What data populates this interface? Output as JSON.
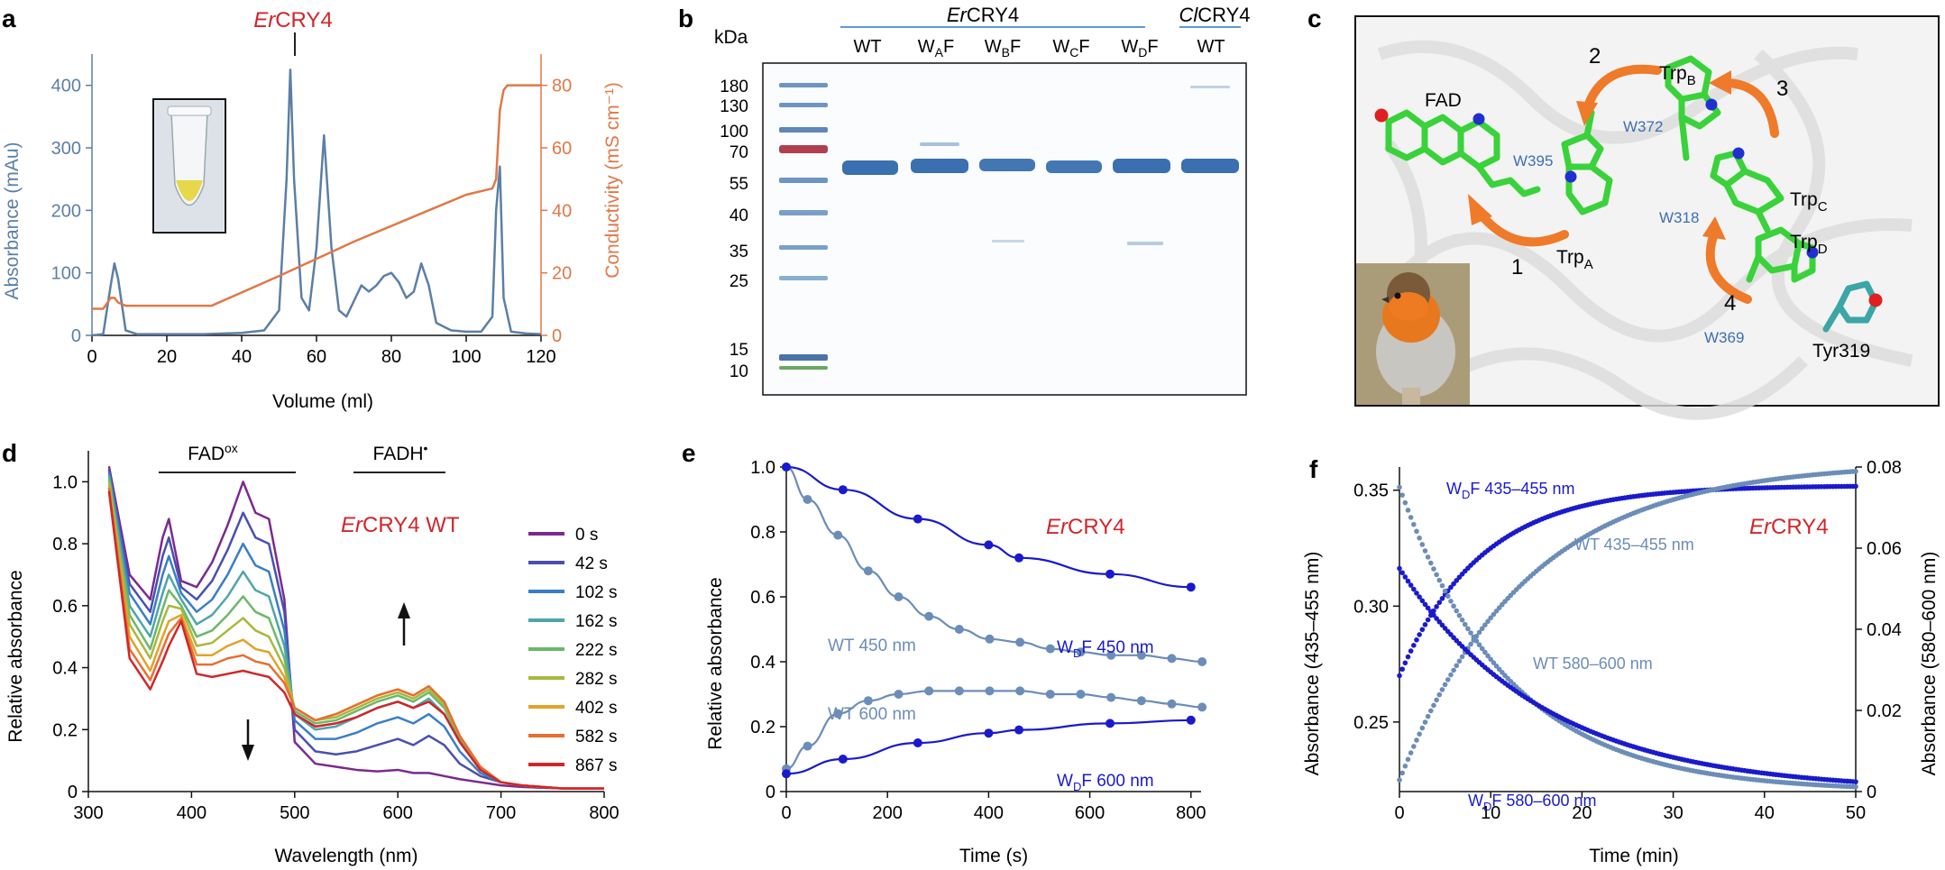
{
  "panels": {
    "a": {
      "letter": "a",
      "construct": {
        "italic": "Er",
        "rest": "CRY4"
      },
      "ylabel_left": "Absorbance (mAu)",
      "ylabel_right": "Conductivity (mS cm⁻¹)",
      "xlabel": "Volume (ml)"
    },
    "b": {
      "letter": "b",
      "kda": "kDa",
      "group1": {
        "italic": "Er",
        "rest": "CRY4"
      },
      "group2": {
        "italic": "Cl",
        "rest": "CRY4"
      },
      "lanes": [
        {
          "main": "WT",
          "sub": ""
        },
        {
          "main": "W",
          "sub": "A",
          "suffix": "F"
        },
        {
          "main": "W",
          "sub": "B",
          "suffix": "F"
        },
        {
          "main": "W",
          "sub": "C",
          "suffix": "F"
        },
        {
          "main": "W",
          "sub": "D",
          "suffix": "F"
        },
        {
          "main": "WT",
          "sub": ""
        }
      ],
      "markers": [
        "180",
        "130",
        "100",
        "70",
        "55",
        "40",
        "35",
        "25",
        "15",
        "10"
      ]
    },
    "c": {
      "letter": "c",
      "labels": {
        "fad": "FAD",
        "trpA": "Trp",
        "trpA_sub": "A",
        "trpB": "Trp",
        "trpB_sub": "B",
        "trpC": "Trp",
        "trpC_sub": "C",
        "trpD": "Trp",
        "trpD_sub": "D",
        "tyr": "Tyr319",
        "w395": "W395",
        "w372": "W372",
        "w318": "W318",
        "w369": "W369",
        "step1": "1",
        "step2": "2",
        "step3": "3",
        "step4": "4"
      }
    },
    "d": {
      "letter": "d",
      "fad_ox": "FAD",
      "fad_ox_sup": "ox",
      "fadh": "FADH",
      "fadh_sup": "•",
      "title": {
        "italic": "Er",
        "rest": "CRY4 WT"
      },
      "ylabel": "Relative absorbance",
      "xlabel": "Wavelength (nm)"
    },
    "e": {
      "letter": "e",
      "title": {
        "italic": "Er",
        "rest": "CRY4"
      },
      "ylabel": "Relative absorbance",
      "xlabel": "Time (s)",
      "labels": {
        "wt450": "WT 450 nm",
        "wt600": "WT 600 nm",
        "wd450_main": "W",
        "wd450_sub": "D",
        "wd450_rest": "F 450 nm",
        "wd600_main": "W",
        "wd600_sub": "D",
        "wd600_rest": "F 600 nm"
      }
    },
    "f": {
      "letter": "f",
      "title": {
        "italic": "Er",
        "rest": "CRY4"
      },
      "ylabel_left": "Absorbance (435–455 nm)",
      "ylabel_right": "Absorbance (580–600 nm)",
      "xlabel": "Time (min)",
      "labels": {
        "wd435_main": "W",
        "wd435_sub": "D",
        "wd435_rest": "F 435–455 nm",
        "wt435": "WT 435–455 nm",
        "wt580": "WT 580–600 nm",
        "wd580_main": "W",
        "wd580_sub": "D",
        "wd580_rest": "F 580–600 nm"
      }
    }
  },
  "chart_data": [
    {
      "id": "a",
      "type": "line",
      "title": "ErCRY4",
      "xlabel": "Volume (ml)",
      "ylabel": "Absorbance (mAu)",
      "y2label": "Conductivity (mS cm-1)",
      "xlim": [
        0,
        120
      ],
      "ylim": [
        0,
        450
      ],
      "y2lim": [
        0,
        90
      ],
      "xticks": [
        "0",
        "20",
        "40",
        "60",
        "80",
        "100",
        "120"
      ],
      "yticks": [
        "0",
        "100",
        "200",
        "300",
        "400"
      ],
      "y2ticks": [
        "0",
        "20",
        "40",
        "60",
        "80"
      ],
      "series": [
        {
          "name": "Absorbance",
          "color": "#5b7fa6",
          "x": [
            0,
            3,
            5,
            6,
            7,
            9,
            12,
            20,
            30,
            40,
            46,
            50,
            52,
            53,
            54,
            56,
            58,
            60,
            62,
            64,
            66,
            68,
            70,
            72,
            74,
            76,
            78,
            80,
            82,
            84,
            86,
            88,
            90,
            92,
            96,
            100,
            104,
            107,
            108,
            109,
            110,
            112,
            116,
            120
          ],
          "y": [
            0,
            2,
            80,
            115,
            90,
            8,
            2,
            2,
            2,
            4,
            8,
            40,
            250,
            425,
            250,
            60,
            40,
            140,
            320,
            140,
            40,
            30,
            55,
            80,
            70,
            80,
            95,
            100,
            85,
            60,
            70,
            115,
            80,
            20,
            8,
            6,
            6,
            30,
            200,
            270,
            60,
            6,
            3,
            2
          ]
        },
        {
          "name": "Conductivity",
          "color": "#e07848",
          "x": [
            0,
            3,
            5,
            6,
            7,
            9,
            12,
            20,
            32,
            50,
            70,
            90,
            100,
            107,
            108,
            109,
            110,
            111,
            113,
            120
          ],
          "y": [
            8.5,
            8.5,
            12,
            12,
            10.5,
            9.5,
            9.5,
            9.5,
            9.5,
            19,
            30,
            40,
            45,
            47,
            50,
            72,
            78.5,
            80,
            80,
            80
          ]
        }
      ]
    },
    {
      "id": "d",
      "type": "line",
      "title": "ErCRY4 WT",
      "xlabel": "Wavelength (nm)",
      "ylabel": "Relative absorbance",
      "xlim": [
        300,
        800
      ],
      "ylim": [
        0,
        1.1
      ],
      "xticks": [
        "300",
        "400",
        "500",
        "600",
        "700",
        "800"
      ],
      "yticks": [
        "0",
        "0.2",
        "0.4",
        "0.6",
        "0.8",
        "1.0"
      ],
      "x": [
        320,
        340,
        360,
        372,
        378,
        390,
        405,
        420,
        435,
        450,
        462,
        475,
        490,
        500,
        520,
        540,
        560,
        580,
        600,
        615,
        630,
        645,
        660,
        680,
        700,
        720,
        760,
        800
      ],
      "series": [
        {
          "name": "0 s",
          "color": "#7b2a8f",
          "values": [
            1.05,
            0.7,
            0.62,
            0.82,
            0.88,
            0.68,
            0.66,
            0.74,
            0.86,
            1.0,
            0.9,
            0.88,
            0.62,
            0.16,
            0.09,
            0.08,
            0.07,
            0.065,
            0.07,
            0.06,
            0.06,
            0.05,
            0.04,
            0.03,
            0.02,
            0.015,
            0.01,
            0.01
          ]
        },
        {
          "name": "42 s",
          "color": "#4a4fb0",
          "values": [
            1.04,
            0.67,
            0.58,
            0.76,
            0.82,
            0.66,
            0.62,
            0.68,
            0.78,
            0.9,
            0.82,
            0.8,
            0.58,
            0.2,
            0.13,
            0.12,
            0.13,
            0.15,
            0.17,
            0.15,
            0.18,
            0.15,
            0.09,
            0.05,
            0.03,
            0.02,
            0.01,
            0.01
          ]
        },
        {
          "name": "102 s",
          "color": "#3a7ec8",
          "values": [
            1.03,
            0.64,
            0.54,
            0.7,
            0.76,
            0.64,
            0.58,
            0.62,
            0.7,
            0.8,
            0.73,
            0.71,
            0.52,
            0.23,
            0.17,
            0.17,
            0.19,
            0.22,
            0.24,
            0.22,
            0.25,
            0.21,
            0.13,
            0.06,
            0.03,
            0.02,
            0.01,
            0.01
          ]
        },
        {
          "name": "162 s",
          "color": "#4fa5a8",
          "values": [
            1.02,
            0.6,
            0.5,
            0.64,
            0.7,
            0.62,
            0.54,
            0.57,
            0.63,
            0.71,
            0.65,
            0.63,
            0.47,
            0.25,
            0.2,
            0.21,
            0.24,
            0.27,
            0.29,
            0.27,
            0.3,
            0.25,
            0.16,
            0.07,
            0.03,
            0.02,
            0.01,
            0.01
          ]
        },
        {
          "name": "222 s",
          "color": "#6cb86a",
          "values": [
            1.01,
            0.57,
            0.46,
            0.59,
            0.65,
            0.6,
            0.5,
            0.52,
            0.57,
            0.63,
            0.58,
            0.56,
            0.43,
            0.26,
            0.22,
            0.23,
            0.26,
            0.29,
            0.31,
            0.29,
            0.32,
            0.27,
            0.17,
            0.07,
            0.03,
            0.02,
            0.01,
            0.01
          ]
        },
        {
          "name": "282 s",
          "color": "#a8b83e",
          "values": [
            1.0,
            0.54,
            0.43,
            0.55,
            0.6,
            0.59,
            0.47,
            0.48,
            0.52,
            0.56,
            0.52,
            0.5,
            0.4,
            0.27,
            0.23,
            0.24,
            0.27,
            0.3,
            0.32,
            0.3,
            0.33,
            0.28,
            0.18,
            0.08,
            0.03,
            0.02,
            0.01,
            0.01
          ]
        },
        {
          "name": "402 s",
          "color": "#e0a32a",
          "values": [
            0.99,
            0.5,
            0.39,
            0.5,
            0.55,
            0.57,
            0.44,
            0.44,
            0.47,
            0.49,
            0.46,
            0.45,
            0.37,
            0.27,
            0.23,
            0.25,
            0.28,
            0.31,
            0.33,
            0.31,
            0.34,
            0.29,
            0.18,
            0.08,
            0.03,
            0.02,
            0.01,
            0.01
          ]
        },
        {
          "name": "582 s",
          "color": "#e86e30",
          "values": [
            0.98,
            0.46,
            0.36,
            0.46,
            0.51,
            0.56,
            0.41,
            0.41,
            0.43,
            0.44,
            0.42,
            0.41,
            0.35,
            0.27,
            0.23,
            0.25,
            0.28,
            0.31,
            0.33,
            0.31,
            0.34,
            0.29,
            0.18,
            0.08,
            0.03,
            0.02,
            0.01,
            0.01
          ]
        },
        {
          "name": "867 s",
          "color": "#d0262a",
          "values": [
            0.97,
            0.43,
            0.33,
            0.42,
            0.47,
            0.55,
            0.38,
            0.37,
            0.38,
            0.39,
            0.38,
            0.37,
            0.32,
            0.25,
            0.21,
            0.22,
            0.24,
            0.27,
            0.29,
            0.27,
            0.29,
            0.25,
            0.16,
            0.07,
            0.03,
            0.02,
            0.01,
            0.01
          ]
        }
      ]
    },
    {
      "id": "e",
      "type": "scatter",
      "title": "ErCRY4",
      "xlabel": "Time (s)",
      "ylabel": "Relative absorbance",
      "xlim": [
        0,
        820
      ],
      "ylim": [
        0,
        1.0
      ],
      "xticks": [
        "0",
        "200",
        "400",
        "600",
        "800"
      ],
      "yticks": [
        "0",
        "0.2",
        "0.4",
        "0.6",
        "0.8",
        "1.0"
      ],
      "series": [
        {
          "name": "WT 450 nm",
          "color": "#6b8db8",
          "x": [
            0,
            42,
            102,
            162,
            222,
            282,
            342,
            402,
            462,
            522,
            582,
            642,
            702,
            762,
            822
          ],
          "y": [
            1.0,
            0.9,
            0.79,
            0.68,
            0.6,
            0.54,
            0.5,
            0.47,
            0.46,
            0.44,
            0.43,
            0.42,
            0.42,
            0.41,
            0.4
          ]
        },
        {
          "name": "WT 600 nm",
          "color": "#6b8db8",
          "x": [
            0,
            42,
            102,
            162,
            222,
            282,
            342,
            402,
            462,
            522,
            582,
            642,
            702,
            762,
            822
          ],
          "y": [
            0.07,
            0.14,
            0.24,
            0.28,
            0.3,
            0.31,
            0.31,
            0.31,
            0.31,
            0.3,
            0.3,
            0.29,
            0.28,
            0.27,
            0.26
          ]
        },
        {
          "name": "WDF 450 nm",
          "color": "#1a1acc",
          "x": [
            0,
            112,
            260,
            400,
            460,
            640,
            800
          ],
          "y": [
            1.0,
            0.93,
            0.84,
            0.76,
            0.72,
            0.67,
            0.63
          ]
        },
        {
          "name": "WDF 600 nm",
          "color": "#1a1acc",
          "x": [
            0,
            112,
            260,
            400,
            460,
            640,
            800
          ],
          "y": [
            0.055,
            0.1,
            0.15,
            0.18,
            0.19,
            0.21,
            0.22
          ]
        }
      ]
    },
    {
      "id": "f",
      "type": "scatter",
      "title": "ErCRY4",
      "xlabel": "Time (min)",
      "ylabel": "Absorbance (435-455 nm)",
      "y2label": "Absorbance (580-600 nm)",
      "xlim": [
        0,
        50
      ],
      "ylim": [
        0.22,
        0.36
      ],
      "y2lim": [
        0,
        0.08
      ],
      "xticks": [
        "0",
        "10",
        "20",
        "30",
        "40",
        "50"
      ],
      "yticks": [
        "0.25",
        "0.30",
        "0.35"
      ],
      "y2ticks": [
        "0",
        "0.02",
        "0.04",
        "0.06",
        "0.08"
      ],
      "series": [
        {
          "name": "WDF 435-455 nm",
          "axis": "left",
          "color": "#1a1acc",
          "model": "rise",
          "start": 0.27,
          "end": 0.352,
          "tau": 9
        },
        {
          "name": "WT 435-455 nm",
          "axis": "left",
          "color": "#6b8db8",
          "model": "rise",
          "start": 0.225,
          "end": 0.362,
          "tau": 14
        },
        {
          "name": "WT 580-600 nm",
          "axis": "right",
          "color": "#6b8db8",
          "model": "decay",
          "start": 0.075,
          "end": 0.0,
          "tau": 12
        },
        {
          "name": "WDF 580-600 nm",
          "axis": "right",
          "color": "#1a1acc",
          "model": "decay",
          "start": 0.055,
          "end": 0.0,
          "tau": 16
        }
      ]
    }
  ]
}
